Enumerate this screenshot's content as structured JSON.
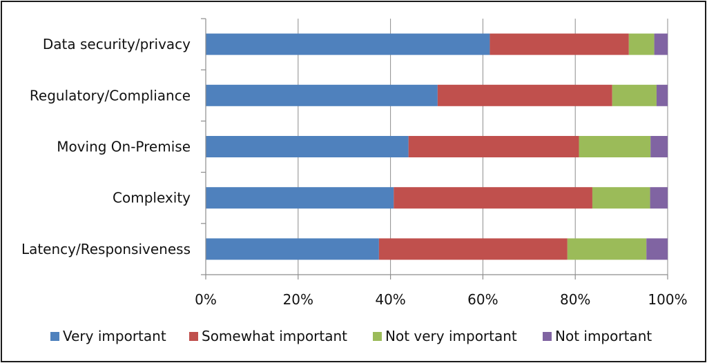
{
  "chart_data": {
    "type": "bar",
    "orientation": "horizontal",
    "stacked": true,
    "categories": [
      "Data security/privacy",
      "Regulatory/Compliance",
      "Moving On-Premise",
      "Complexity",
      "Latency/Responsiveness"
    ],
    "series": [
      {
        "name": "Very important",
        "color": "#4f81bd",
        "values": [
          61.5,
          50.2,
          43.9,
          40.7,
          37.5
        ]
      },
      {
        "name": "Somewhat important",
        "color": "#c0504d",
        "values": [
          30.1,
          37.8,
          36.9,
          43.0,
          40.8
        ]
      },
      {
        "name": "Not very important",
        "color": "#9bbb59",
        "values": [
          5.5,
          9.6,
          15.5,
          12.5,
          17.1
        ]
      },
      {
        "name": "Not important",
        "color": "#8064a2",
        "values": [
          2.9,
          2.4,
          3.7,
          3.8,
          4.6
        ]
      }
    ],
    "x_ticks": [
      "0%",
      "20%",
      "40%",
      "60%",
      "80%",
      "100%"
    ],
    "xlim": [
      0,
      100
    ],
    "title": "",
    "xlabel": "",
    "ylabel": "",
    "grid": "vertical",
    "legend_position": "bottom"
  }
}
